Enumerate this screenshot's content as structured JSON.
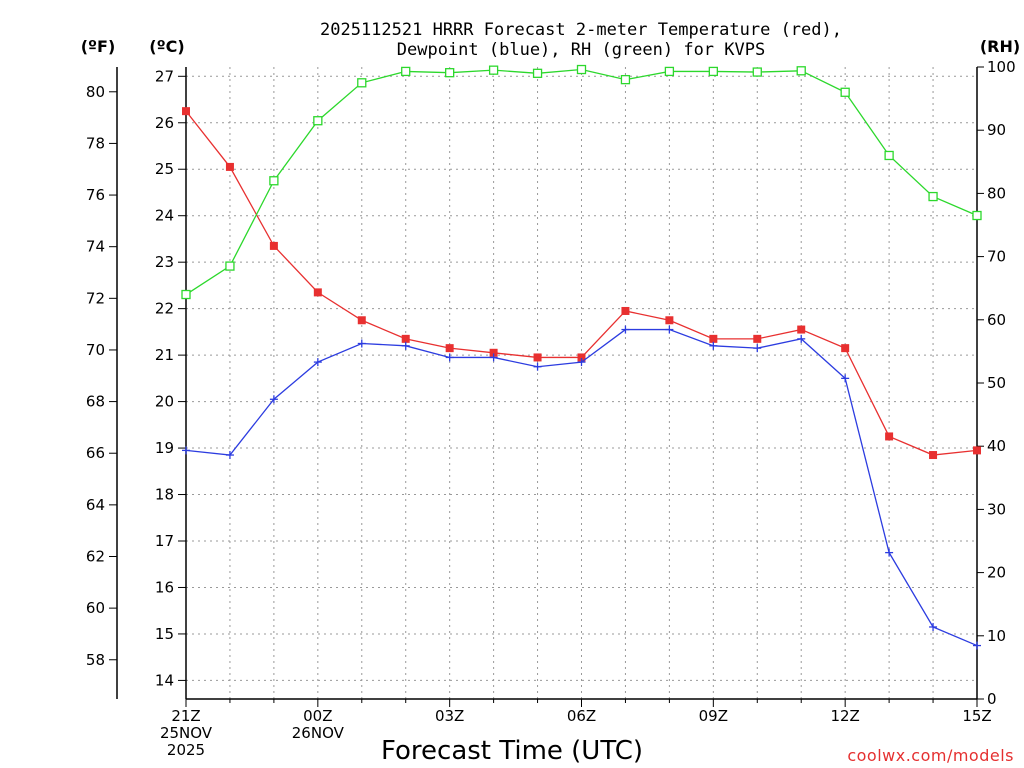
{
  "chart_data": {
    "type": "line",
    "title_line1": "2025112521 HRRR Forecast 2-meter Temperature (red),",
    "title_line2": "Dewpoint (blue), RH (green) for KVPS",
    "xlabel": "Forecast Time (UTC)",
    "credit": "coolwx.com/models",
    "units": {
      "left_outer": "(ºF)",
      "left_inner": "(ºC)",
      "right": "(RH)"
    },
    "x_range": [
      0,
      18
    ],
    "x_ticks": [
      {
        "x": 0,
        "lines": [
          "21Z",
          "25NOV",
          "2025"
        ]
      },
      {
        "x": 3,
        "lines": [
          "00Z",
          "26NOV"
        ]
      },
      {
        "x": 6,
        "lines": [
          "03Z"
        ]
      },
      {
        "x": 9,
        "lines": [
          "06Z"
        ]
      },
      {
        "x": 12,
        "lines": [
          "09Z"
        ]
      },
      {
        "x": 15,
        "lines": [
          "12Z"
        ]
      },
      {
        "x": 18,
        "lines": [
          "15Z"
        ]
      }
    ],
    "celsius_axis": {
      "range": [
        13.6,
        27.2
      ],
      "ticks": [
        14,
        15,
        16,
        17,
        18,
        19,
        20,
        21,
        22,
        23,
        24,
        25,
        26,
        27
      ]
    },
    "fahrenheit_axis": {
      "ticks": [
        58,
        60,
        62,
        64,
        66,
        68,
        70,
        72,
        74,
        76,
        78,
        80
      ]
    },
    "rh_axis": {
      "range": [
        0,
        100
      ],
      "ticks": [
        0,
        10,
        20,
        30,
        40,
        50,
        60,
        70,
        80,
        90,
        100
      ]
    },
    "series": [
      {
        "name": "Temperature",
        "color": "#e83030",
        "axis": "celsius",
        "marker": "square-filled",
        "values": [
          26.25,
          25.05,
          23.35,
          22.35,
          21.75,
          21.35,
          21.15,
          21.05,
          20.95,
          20.95,
          21.95,
          21.75,
          21.35,
          21.35,
          21.55,
          21.15,
          19.25,
          18.85,
          18.95
        ]
      },
      {
        "name": "Dewpoint",
        "color": "#2c3ce0",
        "axis": "celsius",
        "marker": "plus",
        "values": [
          18.95,
          18.85,
          20.05,
          20.85,
          21.25,
          21.2,
          20.95,
          20.95,
          20.75,
          20.85,
          21.55,
          21.55,
          21.2,
          21.15,
          21.35,
          20.5,
          16.75,
          15.15,
          14.75
        ]
      },
      {
        "name": "RH",
        "color": "#2cd82c",
        "axis": "rh",
        "marker": "square-open",
        "values": [
          64,
          68.5,
          82,
          91.5,
          97.5,
          99.3,
          99.1,
          99.5,
          99,
          99.6,
          98,
          99.3,
          99.3,
          99.2,
          99.4,
          96,
          86,
          79.5,
          76.5
        ]
      }
    ]
  }
}
